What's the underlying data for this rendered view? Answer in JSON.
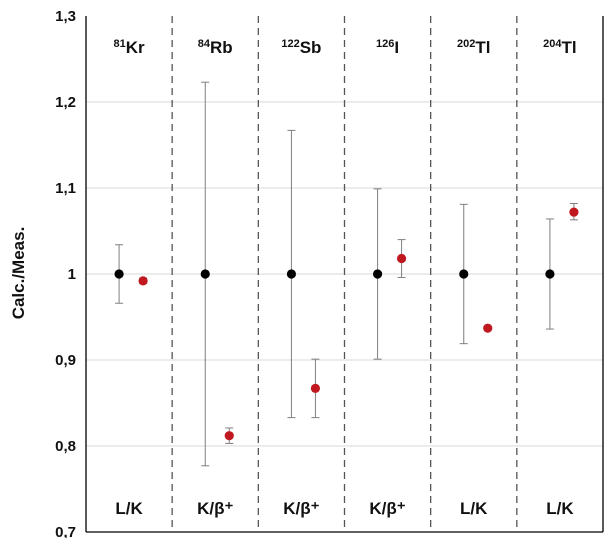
{
  "chart_data": {
    "type": "scatter",
    "title": "",
    "xlabel": "",
    "ylabel": "Calc./Meas.",
    "ylim": [
      0.7,
      1.3
    ],
    "y_ticks": [
      "0,7",
      "0,8",
      "0,9",
      "1",
      "1,1",
      "1,2",
      "1,3"
    ],
    "y_tick_values": [
      0.7,
      0.8,
      0.9,
      1.0,
      1.1,
      1.2,
      1.3
    ],
    "grid": true,
    "legend": "none",
    "colors": {
      "reference": "#000000",
      "calculated": "#c0181f",
      "errorbar": "#7f7f7f",
      "divider": "#555555",
      "grid": "#d9d9d9"
    },
    "panels": [
      {
        "mass": "81",
        "element": "Kr",
        "mode": "L/K",
        "reference": {
          "y": 1.0,
          "err_low": 0.966,
          "err_high": 1.034
        },
        "calculated": {
          "y": 0.992,
          "err_low": 0.989,
          "err_high": 0.995
        }
      },
      {
        "mass": "84",
        "element": "Rb",
        "mode": "K/β⁺",
        "reference": {
          "y": 1.0,
          "err_low": 0.777,
          "err_high": 1.223
        },
        "calculated": {
          "y": 0.812,
          "err_low": 0.803,
          "err_high": 0.821
        }
      },
      {
        "mass": "122",
        "element": "Sb",
        "mode": "K/β⁺",
        "reference": {
          "y": 1.0,
          "err_low": 0.833,
          "err_high": 1.167
        },
        "calculated": {
          "y": 0.867,
          "err_low": 0.833,
          "err_high": 0.901
        }
      },
      {
        "mass": "126",
        "element": "I",
        "mode": "K/β⁺",
        "reference": {
          "y": 1.0,
          "err_low": 0.901,
          "err_high": 1.099
        },
        "calculated": {
          "y": 1.018,
          "err_low": 0.996,
          "err_high": 1.04
        }
      },
      {
        "mass": "202",
        "element": "Tl",
        "mode": "L/K",
        "reference": {
          "y": 1.0,
          "err_low": 0.919,
          "err_high": 1.081
        },
        "calculated": {
          "y": 0.937,
          "err_low": 0.935,
          "err_high": 0.939
        }
      },
      {
        "mass": "204",
        "element": "Tl",
        "mode": "L/K",
        "reference": {
          "y": 1.0,
          "err_low": 0.936,
          "err_high": 1.064
        },
        "calculated": {
          "y": 1.072,
          "err_low": 1.063,
          "err_high": 1.082
        }
      }
    ]
  }
}
